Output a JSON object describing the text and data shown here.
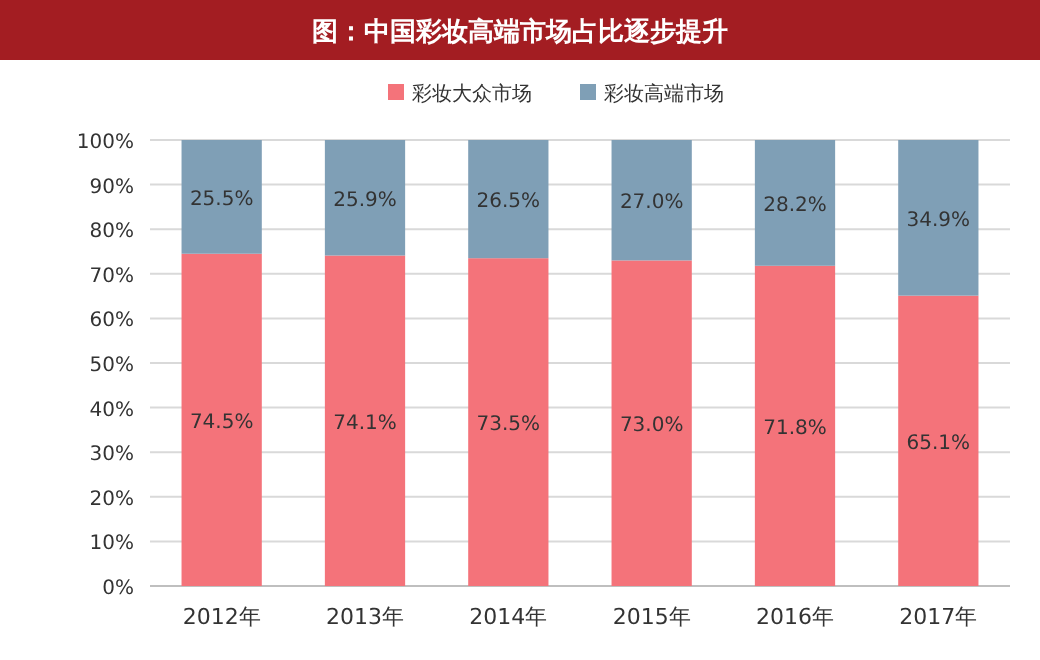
{
  "chart_data": {
    "type": "bar",
    "title": "图：中国彩妆高端市场占比逐步提升",
    "categories": [
      "2012年",
      "2013年",
      "2014年",
      "2015年",
      "2016年",
      "2017年"
    ],
    "series": [
      {
        "name": "彩妆大众市场",
        "color": "#f4737a",
        "values": [
          74.5,
          74.1,
          73.5,
          73.0,
          71.8,
          65.1
        ],
        "value_labels": [
          "74.5%",
          "74.1%",
          "73.5%",
          "73.0%",
          "71.8%",
          "65.1%"
        ]
      },
      {
        "name": "彩妆高端市场",
        "color": "#7f9fb6",
        "values": [
          25.5,
          25.9,
          26.5,
          27.0,
          28.2,
          34.9
        ],
        "value_labels": [
          "25.5%",
          "25.9%",
          "26.5%",
          "27.0%",
          "28.2%",
          "34.9%"
        ]
      }
    ],
    "stacked": true,
    "ylim": [
      0,
      100
    ],
    "yticks": [
      {
        "value": 0,
        "label": "0%"
      },
      {
        "value": 10,
        "label": "10%"
      },
      {
        "value": 20,
        "label": "20%"
      },
      {
        "value": 30,
        "label": "30%"
      },
      {
        "value": 40,
        "label": "40%"
      },
      {
        "value": 50,
        "label": "50%"
      },
      {
        "value": 60,
        "label": "60%"
      },
      {
        "value": 70,
        "label": "70%"
      },
      {
        "value": 80,
        "label": "80%"
      },
      {
        "value": 90,
        "label": "90%"
      },
      {
        "value": 100,
        "label": "100%"
      }
    ],
    "grid": "y",
    "legend": "top"
  }
}
